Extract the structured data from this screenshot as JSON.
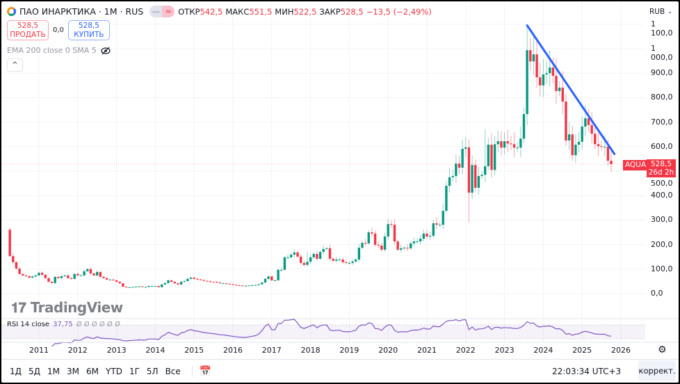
{
  "header": {
    "title": "ПАО ИНАРКТИКА · 1М · RUS",
    "badge_left": "—",
    "badge_right": "≈",
    "ohlc": [
      {
        "k": "ОТКР",
        "v": "542,5"
      },
      {
        "k": "МАКС",
        "v": "551,5"
      },
      {
        "k": "МИН",
        "v": "522,5"
      },
      {
        "k": "ЗАКР",
        "v": "528,5"
      }
    ],
    "change": "−13,5 (−2,49%)"
  },
  "trade": {
    "sell_price": "528,5",
    "sell_label": "ПРОДАТЬ",
    "spread": "0,0",
    "buy_price": "528,5",
    "buy_label": "КУПИТЬ"
  },
  "indicator_label": "EMA 200 close 0 SMA 5",
  "collapse_icon": "^",
  "currency": "RUB",
  "price_axis": [
    "1 100,0",
    "1 000,0",
    "900,0",
    "800,0",
    "700,0",
    "600,0",
    "500,0",
    "400,0",
    "300,0",
    "200,0",
    "100,0",
    "0,0"
  ],
  "price_axis_values": [
    1100,
    1000,
    900,
    800,
    700,
    600,
    500,
    400,
    300,
    200,
    100,
    0
  ],
  "last_price": {
    "symbol": "AQUA",
    "price": "528,5",
    "countdown": "26d 2h"
  },
  "rsi": {
    "label": "RSI 14 close",
    "value": "37,75",
    "extra": "Ø Ø Ø Ø Ø Ø"
  },
  "watermark": "TradingView",
  "time_axis": [
    "2011",
    "2012",
    "2013",
    "2014",
    "2015",
    "2016",
    "2017",
    "2018",
    "2019",
    "2020",
    "2021",
    "2022",
    "2023",
    "2024",
    "2025",
    "2026"
  ],
  "bottom": {
    "ranges": [
      "1Д",
      "5Д",
      "1М",
      "3М",
      "6М",
      "YTD",
      "1Г",
      "5Л",
      "Все"
    ],
    "clock": "22:03:34 UTC+3",
    "adjust": "коррект."
  },
  "colors": {
    "up": "#089981",
    "down": "#f23645",
    "trendline": "#2962ff",
    "rsi": "#7e57c2"
  },
  "chart_data": {
    "type": "candlestick",
    "interval": "1M",
    "start": "2010-04",
    "first_open": 261,
    "closes": [
      153,
      128,
      102,
      80,
      74,
      71,
      65,
      70,
      74,
      85,
      77,
      63,
      48,
      43,
      68,
      63,
      71,
      74,
      63,
      60,
      80,
      74,
      74,
      91,
      100,
      82,
      74,
      88,
      68,
      63,
      57,
      57,
      54,
      48,
      42,
      28,
      25,
      26,
      27,
      28,
      29,
      27,
      27,
      31,
      31,
      31,
      26,
      37,
      43,
      54,
      48,
      42,
      37,
      48,
      51,
      60,
      65,
      60,
      58,
      55,
      52,
      50,
      48,
      47,
      45,
      42,
      42,
      40,
      38,
      36,
      34,
      33,
      32,
      32,
      33,
      34,
      35,
      38,
      45,
      60,
      70,
      54,
      54,
      97,
      97,
      148,
      148,
      159,
      168,
      151,
      125,
      117,
      130,
      148,
      162,
      142,
      170,
      182,
      185,
      142,
      134,
      139,
      139,
      128,
      125,
      125,
      131,
      139,
      187,
      207,
      205,
      250,
      245,
      199,
      196,
      179,
      233,
      284,
      281,
      213,
      179,
      185,
      187,
      185,
      205,
      213,
      213,
      224,
      245,
      233,
      236,
      287,
      281,
      281,
      338,
      440,
      475,
      480,
      531,
      514,
      591,
      597,
      412,
      525,
      432,
      480,
      485,
      520,
      608,
      505,
      610,
      622,
      596,
      622,
      613,
      610,
      596,
      596,
      633,
      733,
      994,
      948,
      977,
      883,
      850,
      895,
      900,
      923,
      889,
      827,
      841,
      784,
      625,
      650,
      565,
      608,
      620,
      682,
      716,
      688,
      653,
      610,
      602,
      600,
      600,
      542.5,
      528.5
    ],
    "high_overrides": {
      "2023-08": 1090,
      "2017-12": 170,
      "2022-07": 670
    },
    "low_overrides": {
      "2022-02": 290
    },
    "trendline": {
      "from": {
        "date": "2023-08",
        "price": 1095
      },
      "to": {
        "date": "2025-11",
        "price": 570
      }
    },
    "ylim": [
      0,
      1100
    ],
    "xlim": [
      "2010-04",
      "2026-03"
    ]
  }
}
